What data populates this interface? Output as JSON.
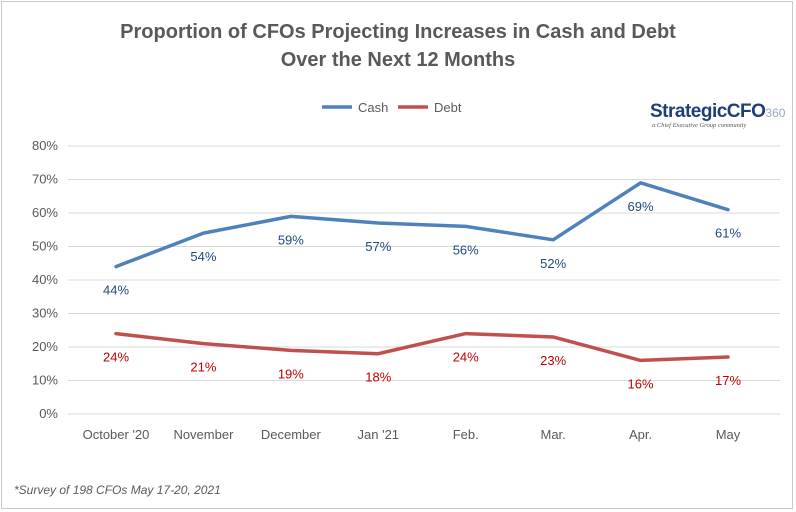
{
  "chart_data": {
    "type": "line",
    "title": [
      "Proportion of CFOs Projecting Increases in Cash and Debt",
      "Over the Next 12 Months"
    ],
    "categories": [
      "October '20",
      "November",
      "December",
      "Jan '21",
      "Feb.",
      "Mar.",
      "Apr.",
      "May"
    ],
    "series": [
      {
        "name": "Cash",
        "color": "#4f81bd",
        "label_color": "#1f497d",
        "values": [
          44,
          54,
          59,
          57,
          56,
          52,
          69,
          61
        ],
        "labels": [
          "44%",
          "54%",
          "59%",
          "57%",
          "56%",
          "52%",
          "69%",
          "61%"
        ]
      },
      {
        "name": "Debt",
        "color": "#c0504d",
        "label_color": "#c00000",
        "values": [
          24,
          21,
          19,
          18,
          24,
          23,
          16,
          17
        ],
        "labels": [
          "24%",
          "21%",
          "19%",
          "18%",
          "24%",
          "23%",
          "16%",
          "17%"
        ]
      }
    ],
    "ylim": [
      0,
      80
    ],
    "yticks": [
      "0%",
      "10%",
      "20%",
      "30%",
      "40%",
      "50%",
      "60%",
      "70%",
      "80%"
    ],
    "grid": true,
    "legend": "top-center",
    "footnote": "*Survey of  198 CFOs May 17-20, 2021"
  },
  "logo": {
    "name": "StrategicCFO",
    "suffix": "360",
    "tagline": "a Chief Executive Group community"
  }
}
